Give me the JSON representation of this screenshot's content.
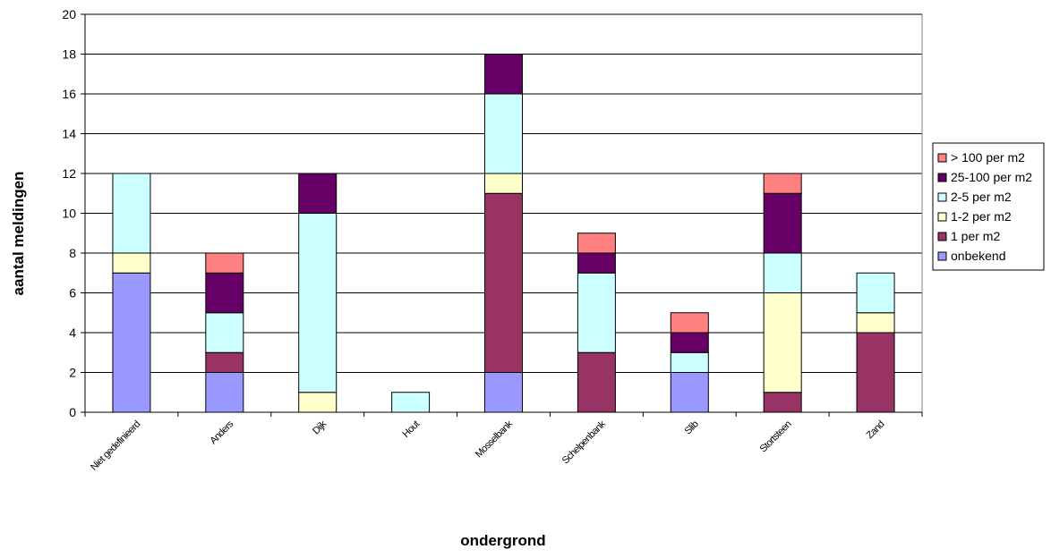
{
  "chart_data": {
    "type": "bar",
    "stacked": true,
    "title": "",
    "xlabel": "ondergrond",
    "ylabel": "aantal meldingen",
    "ylim": [
      0,
      20
    ],
    "yticks": [
      "0",
      "2",
      "4",
      "6",
      "8",
      "10",
      "12",
      "14",
      "16",
      "18",
      "20"
    ],
    "grid": true,
    "legend_position": "right",
    "categories": [
      "Niet gedefinieerd",
      "Anders",
      "Dijk",
      "Hout",
      "Mosselbank",
      "Schelpenbank",
      "Slib",
      "Stortsteen",
      "Zand"
    ],
    "series": [
      {
        "name": "onbekend",
        "color": "#9999ff",
        "values": [
          7,
          2,
          0,
          0,
          2,
          0,
          2,
          0,
          0
        ]
      },
      {
        "name": "1 per m2",
        "color": "#993366",
        "values": [
          0,
          1,
          0,
          0,
          9,
          3,
          0,
          1,
          4
        ]
      },
      {
        "name": "1-2 per m2",
        "color": "#ffffcc",
        "values": [
          1,
          0,
          1,
          0,
          1,
          0,
          0,
          5,
          1
        ]
      },
      {
        "name": "2-5 per m2",
        "color": "#ccffff",
        "values": [
          4,
          2,
          9,
          1,
          4,
          4,
          1,
          2,
          2
        ]
      },
      {
        "name": "25-100 per m2",
        "color": "#660066",
        "values": [
          0,
          2,
          2,
          0,
          2,
          1,
          1,
          3,
          0
        ]
      },
      {
        "name": "> 100 per m2",
        "color": "#ff8080",
        "values": [
          0,
          1,
          0,
          0,
          0,
          1,
          1,
          1,
          0
        ]
      }
    ]
  }
}
